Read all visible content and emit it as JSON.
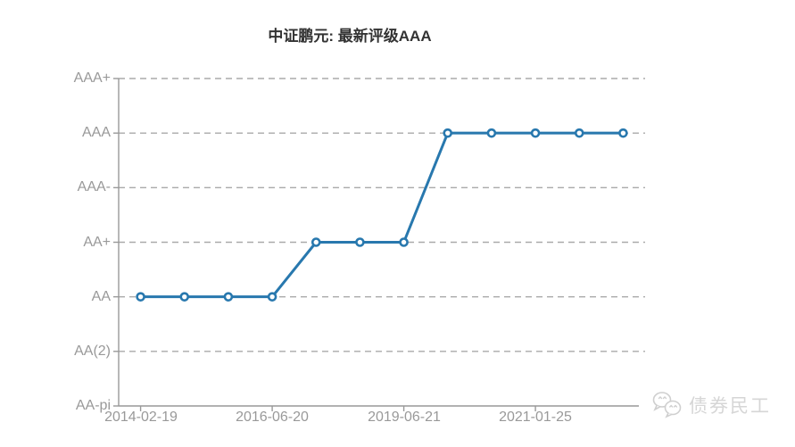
{
  "title": "中证鹏元: 最新评级AAA",
  "colors": {
    "line": "#2878ae",
    "marker_fill": "#ffffff",
    "grid": "#aaaaaa",
    "axis": "#999999",
    "tick_label": "#999999",
    "title_text": "#333333",
    "watermark": "#cccccc"
  },
  "watermark": {
    "icon": "wechat-icon",
    "label": "债券民工"
  },
  "chart_data": {
    "type": "line",
    "title": "中证鹏元: 最新评级AAA",
    "xlabel": "",
    "ylabel": "",
    "legend": "none",
    "grid": "horizontal-dashed",
    "y_categories": [
      "AA-pi",
      "AA(2)",
      "AA",
      "AA+",
      "AAA-",
      "AAA",
      "AAA+"
    ],
    "num_points": 12,
    "values": [
      "AA",
      "AA",
      "AA",
      "AA",
      "AA+",
      "AA+",
      "AA+",
      "AAA",
      "AAA",
      "AAA",
      "AAA",
      "AAA"
    ],
    "x_tick_indices": [
      0,
      3,
      6,
      9
    ],
    "x_tick_labels": [
      "2014-02-19",
      "2016-06-20",
      "2019-06-21",
      "2021-01-25"
    ]
  }
}
